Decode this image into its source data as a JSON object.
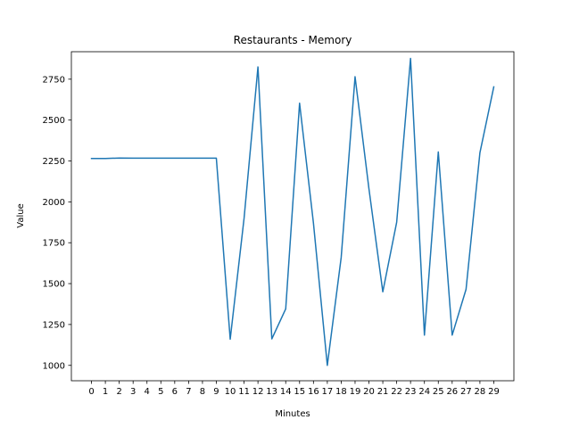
{
  "chart_data": {
    "type": "line",
    "title": "Restaurants - Memory",
    "xlabel": "Minutes",
    "ylabel": "Value",
    "x": [
      0,
      1,
      2,
      3,
      4,
      5,
      6,
      7,
      8,
      9,
      10,
      11,
      12,
      13,
      14,
      15,
      16,
      17,
      18,
      19,
      20,
      21,
      22,
      23,
      24,
      25,
      26,
      27,
      28,
      29
    ],
    "x_tick_labels": [
      "0",
      "1",
      "2",
      "3",
      "4",
      "5",
      "6",
      "7",
      "8",
      "9",
      "10",
      "11",
      "12",
      "13",
      "14",
      "15",
      "16",
      "17",
      "18",
      "19",
      "20",
      "21",
      "22",
      "23",
      "24",
      "25",
      "26",
      "27",
      "28",
      "29"
    ],
    "y_ticks": [
      1000,
      1250,
      1500,
      1750,
      2000,
      2250,
      2500,
      2750
    ],
    "y_tick_labels": [
      "1000",
      "1250",
      "1500",
      "1750",
      "2000",
      "2250",
      "2500",
      "2750"
    ],
    "xlim": [
      -1.45,
      30.45
    ],
    "ylim": [
      906,
      2918
    ],
    "grid": false,
    "color": "#1f77b4",
    "series": [
      {
        "values": [
          2265,
          2265,
          2268,
          2267,
          2267,
          2267,
          2267,
          2267,
          2267,
          2267,
          1160,
          1900,
          2825,
          1162,
          1345,
          2603,
          1870,
          1000,
          1660,
          2765,
          2080,
          1450,
          1875,
          2877,
          1185,
          2305,
          1185,
          1465,
          2300,
          2703
        ]
      }
    ]
  }
}
